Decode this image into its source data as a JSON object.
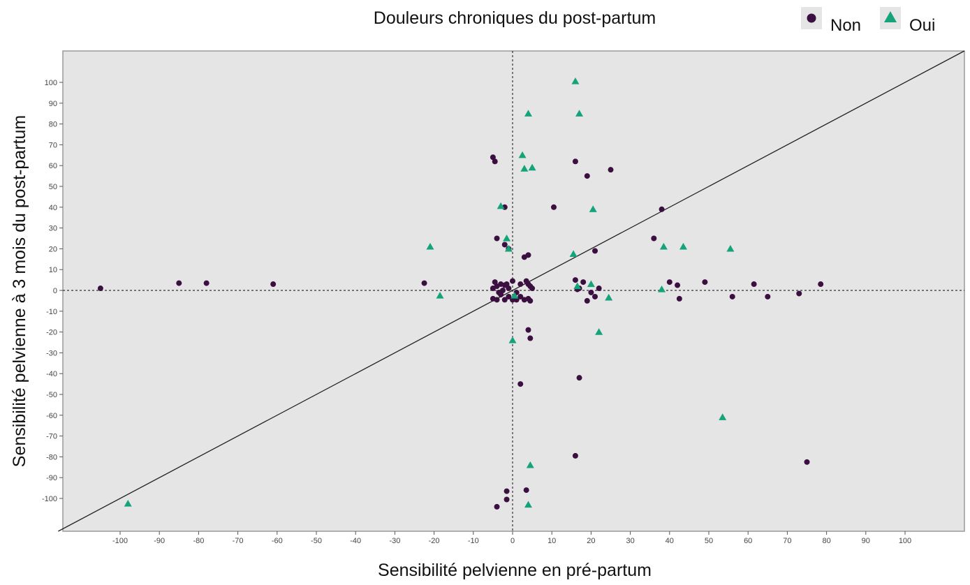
{
  "chart_data": {
    "type": "scatter",
    "title": "Douleurs chroniques du post-partum",
    "xlabel": "Sensibilité pelvienne en pré-partum",
    "ylabel": "Sensibilité pelvienne à 3 mois du post-partum",
    "xlim": [
      -112,
      115
    ],
    "ylim": [
      -115,
      116
    ],
    "xticks": [
      -100,
      -90,
      -80,
      -70,
      -60,
      -50,
      -40,
      -30,
      -20,
      -10,
      0,
      10,
      20,
      30,
      40,
      50,
      60,
      70,
      80,
      90,
      100
    ],
    "yticks": [
      100,
      90,
      80,
      70,
      60,
      50,
      40,
      30,
      20,
      10,
      0,
      -10,
      -20,
      -30,
      -40,
      -50,
      -60,
      -70,
      -80,
      -90,
      -100
    ],
    "grid": false,
    "legend_position": "top-right",
    "reference_lines": [
      "x=0 (dashed)",
      "y=0 (dashed)",
      "y=x (solid diagonal)"
    ],
    "colors": {
      "panel": "#e5e5e5",
      "Non": "#3b0f3f",
      "Oui": "#15a37a",
      "line": "#222222"
    },
    "series": [
      {
        "name": "Non",
        "marker": "circle",
        "points": [
          [
            -105,
            1
          ],
          [
            -85,
            3.5
          ],
          [
            -78,
            3.5
          ],
          [
            -61,
            3
          ],
          [
            -22.5,
            3.5
          ],
          [
            -5,
            64
          ],
          [
            -4.5,
            62
          ],
          [
            -2,
            40
          ],
          [
            -4,
            25
          ],
          [
            -2,
            22
          ],
          [
            -1,
            20
          ],
          [
            3,
            16
          ],
          [
            4,
            17
          ],
          [
            -5,
            1
          ],
          [
            -4.5,
            4
          ],
          [
            -4,
            2
          ],
          [
            -3.5,
            -1
          ],
          [
            -3,
            3
          ],
          [
            -2.5,
            0
          ],
          [
            -2,
            2.5
          ],
          [
            -1.5,
            3
          ],
          [
            -1,
            1
          ],
          [
            0,
            4.5
          ],
          [
            1,
            -1
          ],
          [
            2,
            3
          ],
          [
            3.5,
            4.5
          ],
          [
            4,
            3
          ],
          [
            4.5,
            2
          ],
          [
            5,
            1
          ],
          [
            -5,
            -4
          ],
          [
            -4,
            -4.5
          ],
          [
            -3,
            -2
          ],
          [
            -2,
            -4.5
          ],
          [
            -1,
            -3
          ],
          [
            0,
            -4.5
          ],
          [
            1,
            -4.5
          ],
          [
            2,
            -3
          ],
          [
            3,
            -4.5
          ],
          [
            4,
            -4
          ],
          [
            4.5,
            -5
          ],
          [
            4,
            -19
          ],
          [
            4.5,
            -23
          ],
          [
            10.5,
            40
          ],
          [
            16,
            62
          ],
          [
            19,
            55
          ],
          [
            25,
            58
          ],
          [
            21,
            19
          ],
          [
            16,
            5
          ],
          [
            18,
            4
          ],
          [
            17,
            1
          ],
          [
            16.5,
            0.5
          ],
          [
            19,
            -5
          ],
          [
            20,
            -1
          ],
          [
            21,
            -3
          ],
          [
            22,
            1
          ],
          [
            38,
            39
          ],
          [
            36,
            25
          ],
          [
            40,
            4
          ],
          [
            42,
            2.5
          ],
          [
            42.5,
            -4
          ],
          [
            49,
            4
          ],
          [
            56,
            -3
          ],
          [
            61.5,
            3
          ],
          [
            65,
            -3
          ],
          [
            73,
            -1.5
          ],
          [
            78.5,
            3
          ],
          [
            17,
            -42
          ],
          [
            2,
            -45
          ],
          [
            16,
            -79.5
          ],
          [
            75,
            -82.5
          ],
          [
            -1.5,
            -96.5
          ],
          [
            3.5,
            -96
          ],
          [
            -1.5,
            -100.5
          ],
          [
            -4,
            -104
          ]
        ]
      },
      {
        "name": "Oui",
        "marker": "triangle",
        "points": [
          [
            -98,
            -102.5
          ],
          [
            -21,
            21
          ],
          [
            -18.5,
            -2.5
          ],
          [
            -3,
            40.5
          ],
          [
            -1.5,
            25
          ],
          [
            -1,
            20
          ],
          [
            2.5,
            65
          ],
          [
            3,
            58.5
          ],
          [
            5,
            59
          ],
          [
            4,
            85
          ],
          [
            16,
            100.5
          ],
          [
            17,
            85
          ],
          [
            20.5,
            39
          ],
          [
            15.5,
            17.5
          ],
          [
            16.5,
            2
          ],
          [
            20,
            3
          ],
          [
            24.5,
            -3.5
          ],
          [
            22,
            -20
          ],
          [
            0.5,
            -2.5
          ],
          [
            0,
            -24
          ],
          [
            38,
            0.5
          ],
          [
            38.5,
            21
          ],
          [
            43.5,
            21
          ],
          [
            55.5,
            20
          ],
          [
            53.5,
            -61
          ],
          [
            4.5,
            -84
          ],
          [
            4,
            -103
          ]
        ]
      }
    ]
  }
}
